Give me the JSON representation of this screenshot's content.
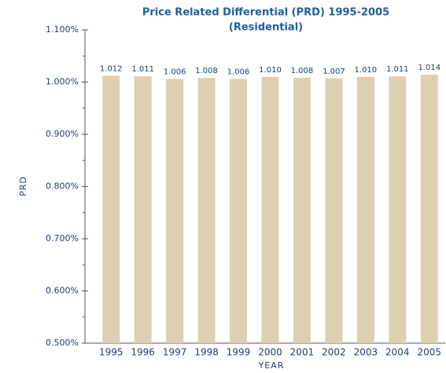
{
  "chart_data": {
    "type": "bar",
    "title": "Price Related Differential (PRD) 1995-2005",
    "subtitle": "(Residential)",
    "xlabel": "YEAR",
    "ylabel": "PRD",
    "categories": [
      "1995",
      "1996",
      "1997",
      "1998",
      "1999",
      "2000",
      "2001",
      "2002",
      "2003",
      "2004",
      "2005"
    ],
    "values": [
      1.012,
      1.011,
      1.006,
      1.008,
      1.006,
      1.01,
      1.008,
      1.007,
      1.01,
      1.011,
      1.014
    ],
    "value_labels": [
      "1.012",
      "1.011",
      "1.006",
      "1.008",
      "1.006",
      "1.010",
      "1.008",
      "1.007",
      "1.010",
      "1.011",
      "1.014"
    ],
    "color": "#ddd0b0",
    "ylim": [
      0.5,
      1.1
    ],
    "yticks": [
      {
        "value": 0.5,
        "label": "0.500%"
      },
      {
        "value": 0.6,
        "label": "0.600%"
      },
      {
        "value": 0.7,
        "label": "0.700%"
      },
      {
        "value": 0.8,
        "label": "0.800%"
      },
      {
        "value": 0.9,
        "label": "0.900%"
      },
      {
        "value": 1.0,
        "label": "1.000%"
      },
      {
        "value": 1.1,
        "label": "1.100%"
      }
    ],
    "yminorticks": [
      0.55,
      0.65,
      0.75,
      0.85,
      0.95,
      1.05
    ],
    "grid": false
  }
}
